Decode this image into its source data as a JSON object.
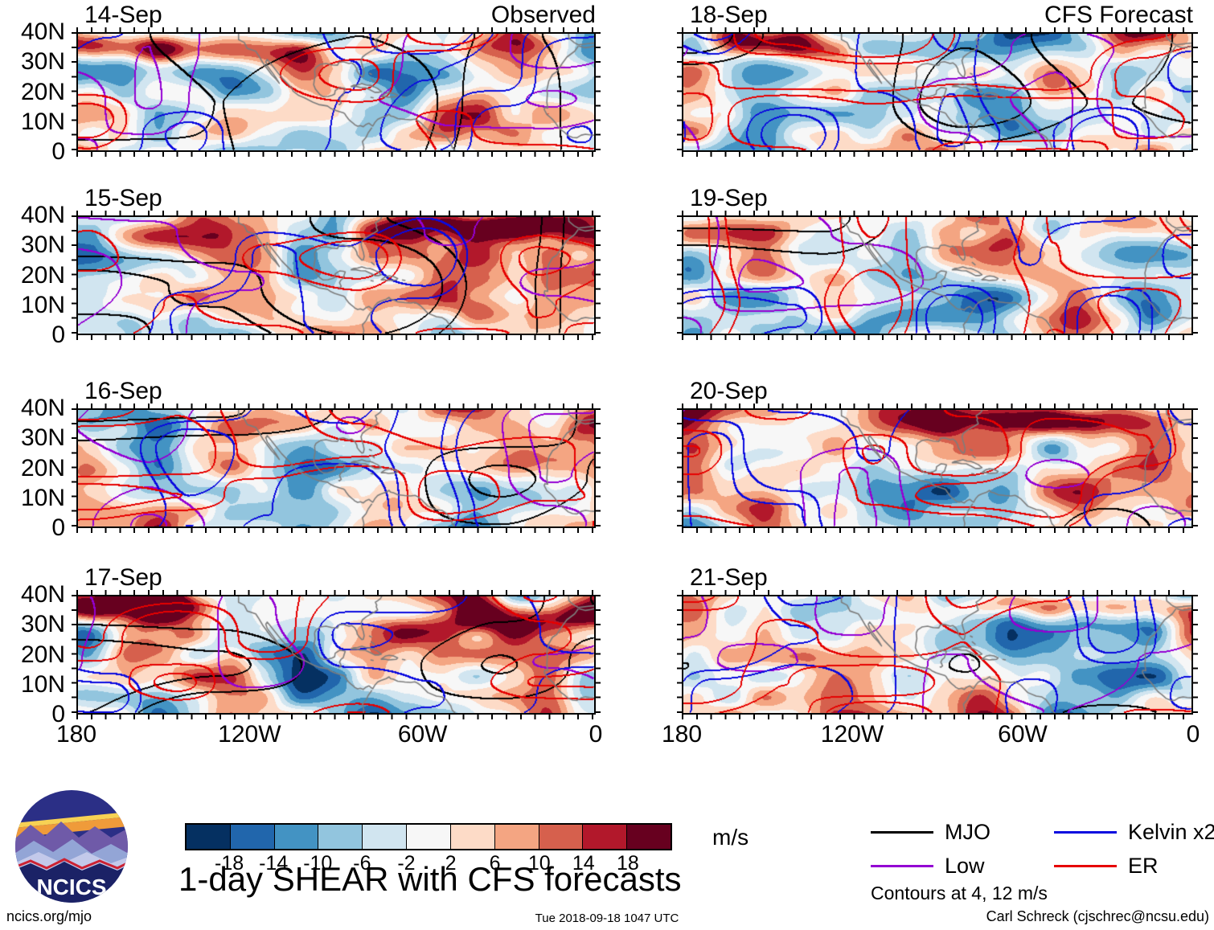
{
  "headers": {
    "observed": "Observed",
    "forecast": "CFS Forecast"
  },
  "panels": [
    {
      "date": "14-Sep"
    },
    {
      "date": "15-Sep"
    },
    {
      "date": "16-Sep"
    },
    {
      "date": "17-Sep"
    },
    {
      "date": "18-Sep"
    },
    {
      "date": "19-Sep"
    },
    {
      "date": "20-Sep"
    },
    {
      "date": "21-Sep"
    }
  ],
  "axes": {
    "y_ticks": [
      "40N",
      "30N",
      "20N",
      "10N",
      "0"
    ],
    "x_ticks": [
      "180",
      "120W",
      "60W",
      "0"
    ]
  },
  "chart_data": {
    "type": "heatmap",
    "title": "1-day SHEAR with CFS forecasts",
    "columns": [
      {
        "label": "Observed",
        "dates": [
          "14-Sep",
          "15-Sep",
          "16-Sep",
          "17-Sep"
        ]
      },
      {
        "label": "CFS Forecast",
        "dates": [
          "18-Sep",
          "19-Sep",
          "20-Sep",
          "21-Sep"
        ]
      }
    ],
    "panel_grid": {
      "rows": 4,
      "cols": 2
    },
    "x_axis": {
      "tick_labels": [
        "180",
        "120W",
        "60W",
        "0"
      ],
      "range_deg_west": [
        180,
        0
      ]
    },
    "y_axis": {
      "tick_labels": [
        "40N",
        "30N",
        "20N",
        "10N",
        "0"
      ],
      "range_deg_north": [
        0,
        40
      ]
    },
    "colorbar": {
      "units": "m/s",
      "tick_labels": [
        "-18",
        "-14",
        "-10",
        "-6",
        "-2",
        "2",
        "6",
        "10",
        "14",
        "18"
      ],
      "colors": [
        "#053061",
        "#2166ac",
        "#4393c3",
        "#92c5de",
        "#d1e5f0",
        "#f7f7f7",
        "#fddbc7",
        "#f4a582",
        "#d6604d",
        "#b2182b",
        "#67001f"
      ]
    },
    "legend": [
      {
        "label": "MJO",
        "color": "#000000"
      },
      {
        "label": "Low",
        "color": "#9400d3"
      },
      {
        "label": "Kelvin x2",
        "color": "#0a0adf"
      },
      {
        "label": "ER",
        "color": "#e60000"
      }
    ],
    "contour_note": "Contours at 4, 12 m/s",
    "legend_position": "bottom-right",
    "grid": false
  },
  "logo": {
    "text": "NCICS"
  },
  "footer": {
    "left": "ncics.org/mjo",
    "center": "Tue 2018-09-18 1047 UTC",
    "right": "Carl Schreck (cjschrec@ncsu.edu)"
  }
}
